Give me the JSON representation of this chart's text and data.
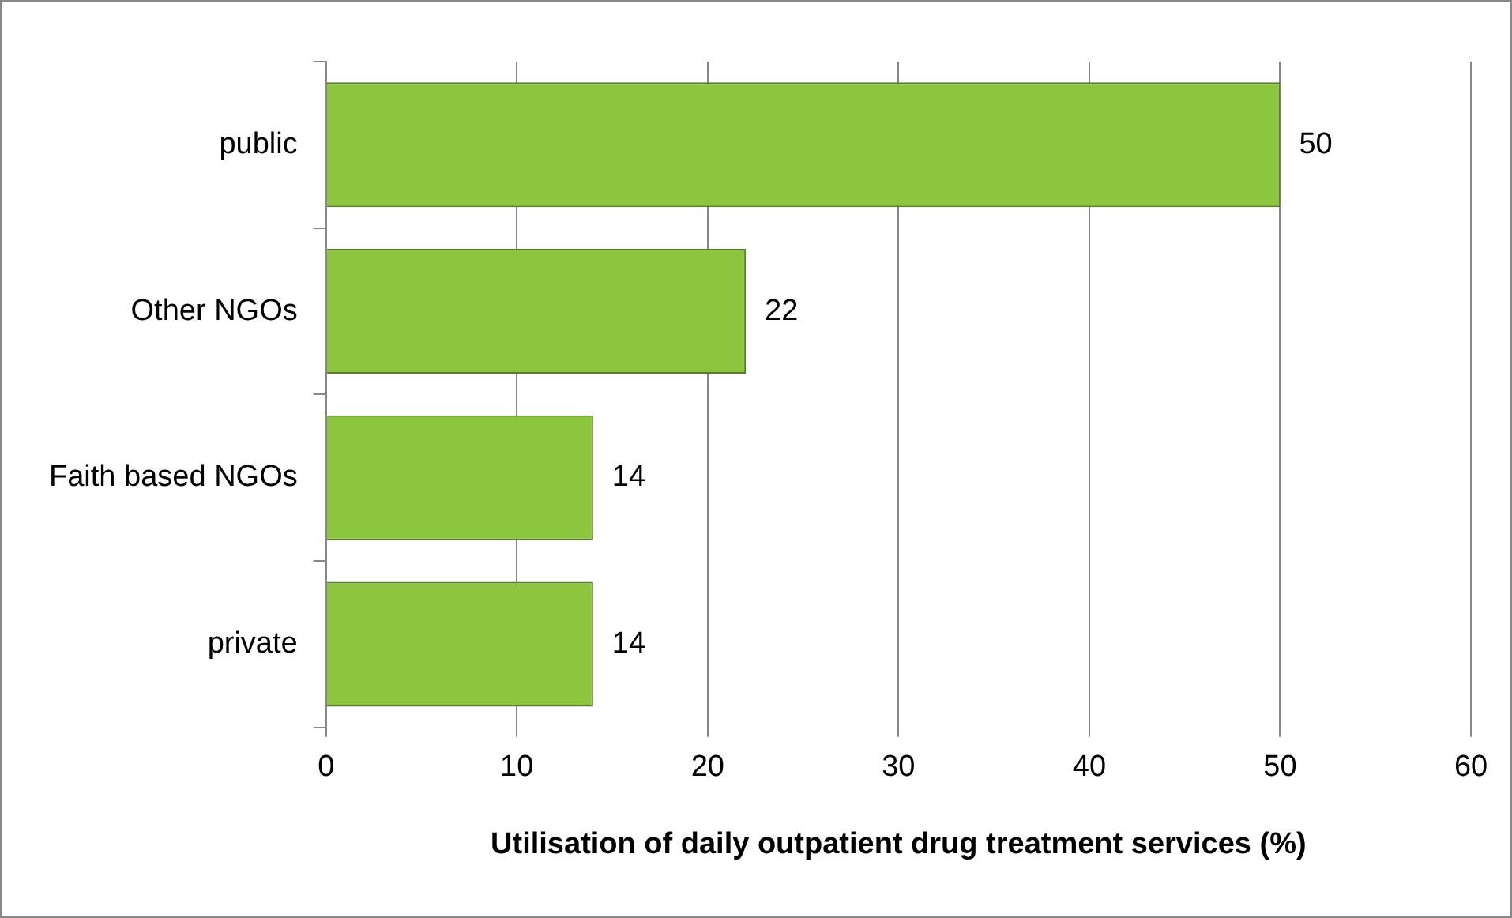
{
  "chart_data": {
    "type": "bar",
    "orientation": "horizontal",
    "xlabel": "Utilisation of daily outpatient drug treatment services (%)",
    "categories": [
      "public",
      "Other NGOs",
      "Faith based NGOs",
      "private"
    ],
    "values": [
      50,
      22,
      14,
      14
    ],
    "color": "#8cc63f",
    "xlim": [
      0,
      60
    ],
    "xticks": [
      0,
      10,
      20,
      30,
      40,
      50,
      60
    ],
    "grid": "x",
    "data_labels": true,
    "legend": false
  }
}
